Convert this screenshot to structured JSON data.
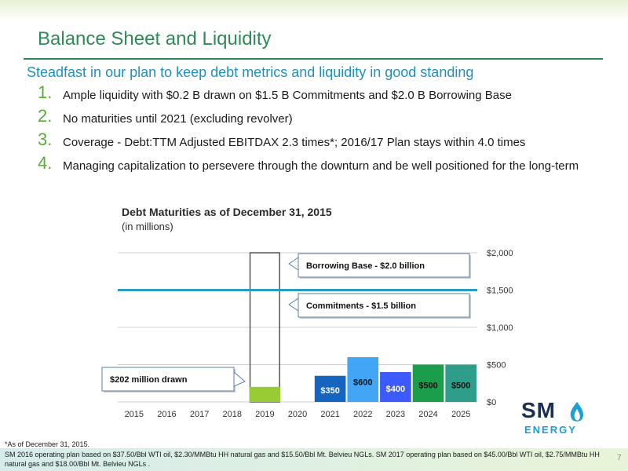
{
  "slide": {
    "title": "Balance Sheet and Liquidity",
    "subtitle": "Steadfast in our plan to keep debt metrics and liquidity in good standing",
    "bullets": [
      {
        "num": "1.",
        "text": "Ample liquidity with $0.2 B drawn on $1.5 B Commitments and $2.0 B Borrowing Base"
      },
      {
        "num": "2.",
        "text": "No maturities until 2021 (excluding revolver)"
      },
      {
        "num": "3.",
        "text": "Coverage - Debt:TTM Adjusted EBITDAX 2.3 times*; 2016/17 Plan stays within 4.0 times"
      },
      {
        "num": "4.",
        "text": "Managing capitalization to persevere through the downturn and be well positioned for the long-term"
      }
    ],
    "footnote_star": "*As of December 31, 2015.",
    "footnote": "SM 2016 operating plan based on $37.50/Bbl WTI oil, $2.30/MMBtu HH natural gas and $15.50/Bbl Mt. Belvieu NGLs. SM 2017 operating plan based on $45.00/Bbl WTI oil, $2.75/MMBtu HH natural gas and $18.00/Bbl Mt. Belvieu NGLs .",
    "page_number": "7",
    "logo": {
      "sm": "SM",
      "energy": "ENERGY"
    }
  },
  "chart_data": {
    "type": "bar",
    "title": "Debt Maturities as of December 31, 2015",
    "subtitle": "(in millions)",
    "categories": [
      "2015",
      "2016",
      "2017",
      "2018",
      "2019",
      "2020",
      "2021",
      "2022",
      "2023",
      "2024",
      "2025"
    ],
    "values": [
      0,
      0,
      0,
      0,
      202,
      0,
      350,
      600,
      400,
      500,
      500
    ],
    "bar_colors": [
      "",
      "",
      "",
      "",
      "#99cc33",
      "",
      "#1565c0",
      "#42a5f5",
      "#3d5afe",
      "#1b9e4b",
      "#2e9e8a"
    ],
    "data_labels": [
      "",
      "",
      "",
      "",
      "",
      "",
      "$350",
      "$600",
      "$400",
      "$500",
      "$500"
    ],
    "ylim": [
      0,
      2000
    ],
    "yticks": [
      0,
      500,
      1000,
      1500,
      2000
    ],
    "ytick_labels": [
      "$0",
      "$500",
      "$1,000",
      "$1,500",
      "$2,000"
    ],
    "y_axis_side": "right",
    "grid": true,
    "revolver": {
      "year": "2019",
      "capacity": 2000,
      "drawn": 202
    },
    "reference_lines": [
      {
        "value": 1500,
        "color": "#2a9dc4"
      }
    ],
    "callouts": [
      {
        "text": "Borrowing Base - $2.0 billion",
        "value": 2000
      },
      {
        "text": "Commitments - $1.5 billion",
        "value": 1500
      },
      {
        "text": "$202 million drawn",
        "value": 202
      }
    ]
  }
}
